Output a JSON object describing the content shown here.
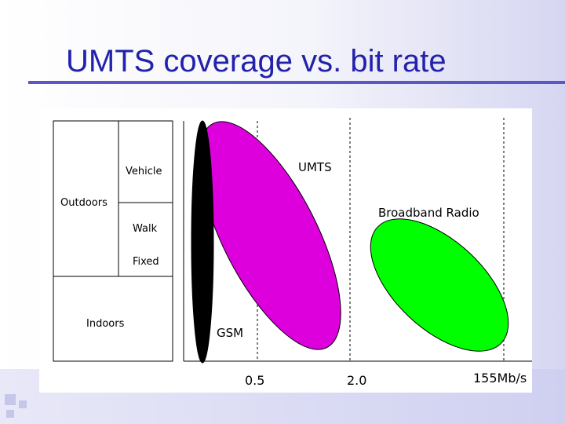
{
  "slide": {
    "title": "UMTS coverage vs. bit rate"
  },
  "diagram": {
    "environment_labels": {
      "vehicle": "Vehicle",
      "outdoors": "Outdoors",
      "walk": "Walk",
      "fixed": "Fixed",
      "indoors": "Indoors"
    },
    "technology_labels": {
      "umts": "UMTS",
      "broadband_radio": "Broadband Radio",
      "gsm": "GSM"
    },
    "rate_ticks": [
      "0.5",
      "2.0",
      "155Mb/s"
    ],
    "colors": {
      "gsm": "#000000",
      "umts": "#dd00dd",
      "broadband_radio": "#00ff00",
      "title": "#2222aa",
      "title_rule": "#5858c8"
    }
  }
}
